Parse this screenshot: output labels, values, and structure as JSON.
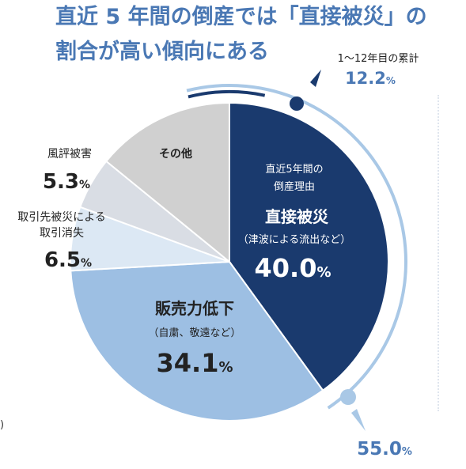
{
  "title": {
    "line1": "直近 5 年間の倒産では「直接被災」の",
    "line2": "割合が高い傾向にある"
  },
  "stray_text": ")",
  "colors": {
    "title": "#4a78b4",
    "navy": "#1a3a6e",
    "blue_mid": "#9dbfe3",
    "blue_light": "#dce8f4",
    "gray_light": "#d9dde4",
    "gray": "#d0d0d0",
    "arc": "#a9c8e6"
  },
  "chart_data": {
    "type": "pie",
    "slices": [
      {
        "label": "直接被災",
        "sublabel": "（津波による流出など）",
        "header": "直近5年間の\n倒産理由",
        "value": 40.0
      },
      {
        "label": "販売力低下",
        "sublabel": "（自粛、敬遠など）",
        "value": 34.1
      },
      {
        "label": "取引先被災による\n取引消失",
        "value": 6.5
      },
      {
        "label": "風評被害",
        "value": 5.3
      },
      {
        "label": "その他",
        "value": 14.1
      }
    ],
    "annotations": [
      {
        "label": "1～12年目の累計",
        "value": 12.2
      },
      {
        "value": 55.0
      }
    ],
    "unit": "%"
  }
}
